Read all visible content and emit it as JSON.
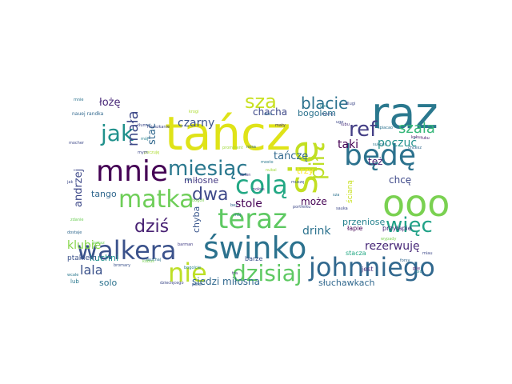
{
  "word_cloud": {
    "words": [
      {
        "text": "tańcz",
        "color": "#dfe318"
      },
      {
        "text": "raz",
        "color": "#2a788e"
      },
      {
        "text": "się",
        "color": "#c2df23"
      },
      {
        "text": "ooo",
        "color": "#7ad151"
      },
      {
        "text": "będę",
        "color": "#2c728e"
      },
      {
        "text": "johnniego",
        "color": "#31688e"
      },
      {
        "text": "świnko",
        "color": "#2c728e"
      },
      {
        "text": "walkera",
        "color": "#3b528b"
      },
      {
        "text": "mnie",
        "color": "#440154"
      },
      {
        "text": "teraz",
        "color": "#5ec962"
      },
      {
        "text": "dzisiaj",
        "color": "#5ec962"
      },
      {
        "text": "matka",
        "color": "#6ece58"
      },
      {
        "text": "nie",
        "color": "#bddf26"
      },
      {
        "text": "colą",
        "color": "#22a884"
      },
      {
        "text": "miesiąc",
        "color": "#2a788e"
      },
      {
        "text": "pił",
        "color": "#bddf26"
      },
      {
        "text": "jak",
        "color": "#21918c"
      },
      {
        "text": "więc",
        "color": "#1fa187"
      },
      {
        "text": "dziś",
        "color": "#482173"
      },
      {
        "text": "dwa",
        "color": "#3e4989"
      },
      {
        "text": "ref",
        "color": "#433e85"
      },
      {
        "text": "sza",
        "color": "#c8e020"
      },
      {
        "text": "blacie",
        "color": "#2c728e"
      },
      {
        "text": "szala",
        "color": "#35b779"
      },
      {
        "text": "mała",
        "color": "#3e4989"
      },
      {
        "text": "lala",
        "color": "#3b528b"
      },
      {
        "text": "czarny",
        "color": "#3b528b"
      },
      {
        "text": "stole",
        "color": "#440154"
      },
      {
        "text": "drink",
        "color": "#2c728e"
      },
      {
        "text": "rezerwuję",
        "color": "#482878"
      },
      {
        "text": "klubie",
        "color": "#86d549"
      },
      {
        "text": "taki",
        "color": "#440154"
      },
      {
        "text": "tańczę",
        "color": "#31688e"
      },
      {
        "text": "poczuć",
        "color": "#21918c"
      },
      {
        "text": "andrzej",
        "color": "#3e4989"
      },
      {
        "text": "łożę",
        "color": "#482878"
      },
      {
        "text": "stać",
        "color": "#31688e"
      },
      {
        "text": "też",
        "color": "#481f70"
      },
      {
        "text": "może",
        "color": "#440154"
      },
      {
        "text": "chcę",
        "color": "#3e4989"
      },
      {
        "text": "chacha",
        "color": "#3e4989"
      },
      {
        "text": "bogolem",
        "color": "#2c728e"
      },
      {
        "text": "miłosne",
        "color": "#443983"
      },
      {
        "text": "siedzi miłosna",
        "color": "#31688e"
      },
      {
        "text": "słuchawkach",
        "color": "#31688e"
      },
      {
        "text": "przeniosę",
        "color": "#26828e"
      },
      {
        "text": "tango",
        "color": "#31688e"
      },
      {
        "text": "kuchni",
        "color": "#21918c"
      },
      {
        "text": "trzy",
        "color": "#fde725"
      },
      {
        "text": "chyba",
        "color": "#39568c"
      },
      {
        "text": "solo",
        "color": "#2c728e"
      },
      {
        "text": "ptakiem",
        "color": "#3b528b"
      },
      {
        "text": "ścianą",
        "color": "#c8e020"
      },
      {
        "text": "łapie",
        "color": "#440154"
      },
      {
        "text": "przyłapie",
        "color": "#482878"
      },
      {
        "text": "stacza",
        "color": "#22a884"
      },
      {
        "text": "jest",
        "color": "#472d7b"
      },
      {
        "text": "barze",
        "color": "#3b528b"
      },
      {
        "text": "lub",
        "color": "#2a788e"
      },
      {
        "text": "nauej randka",
        "color": "#31688e"
      },
      {
        "text": "krogi",
        "color": "#addc30"
      },
      {
        "text": "prominent",
        "color": "#a0da39"
      },
      {
        "text": "portfelku",
        "color": "#3e4989"
      },
      {
        "text": "barman",
        "color": "#433e85"
      },
      {
        "text": "pokaz",
        "color": "#6ece58"
      },
      {
        "text": "sauchaj",
        "color": "#2c728e"
      },
      {
        "text": "dziecięcego",
        "color": "#3e4989"
      },
      {
        "text": "forsy",
        "color": "#31688e"
      },
      {
        "text": "mieszkanie",
        "color": "#3e4989"
      },
      {
        "text": "sukces",
        "color": "#2a788e"
      },
      {
        "text": "dzien",
        "color": "#443983"
      },
      {
        "text": "nosa",
        "color": "#31688e"
      },
      {
        "text": "poter",
        "color": "#39568c"
      },
      {
        "text": "maty",
        "color": "#46327e"
      },
      {
        "text": "mamy",
        "color": "#3b528b"
      },
      {
        "text": "dlugi",
        "color": "#3e4989"
      },
      {
        "text": "lubu",
        "color": "#472d7b"
      },
      {
        "text": "mój",
        "color": "#26828e"
      },
      {
        "text": "koku",
        "color": "#481a6c"
      },
      {
        "text": "wypady",
        "color": "#7ad151"
      },
      {
        "text": "tra",
        "color": "#46327e"
      },
      {
        "text": "miau",
        "color": "#3e4989"
      },
      {
        "text": "śpiacao",
        "color": "#2c728e"
      },
      {
        "text": "dostaje",
        "color": "#31688e"
      },
      {
        "text": "bromary",
        "color": "#3b528b"
      },
      {
        "text": "mocher",
        "color": "#3e4989"
      },
      {
        "text": "mnie",
        "color": "#2c728e"
      },
      {
        "text": "ugo",
        "color": "#3e4989"
      },
      {
        "text": "fuku",
        "color": "#481a6c"
      },
      {
        "text": "ubo",
        "color": "#26828e"
      },
      {
        "text": "nokus",
        "color": "#46327e"
      },
      {
        "text": "mosto",
        "color": "#2a788e"
      },
      {
        "text": "bez",
        "color": "#31688e"
      },
      {
        "text": "tłumu",
        "color": "#3e4989"
      },
      {
        "text": "poczuję",
        "color": "#addc30"
      },
      {
        "text": "nukai",
        "color": "#a0da39"
      },
      {
        "text": "nie",
        "color": "#2c728e"
      },
      {
        "text": "muszę",
        "color": "#3b528b"
      },
      {
        "text": "kubuś",
        "color": "#7ad151"
      },
      {
        "text": "sauka",
        "color": "#3e4989"
      },
      {
        "text": "chcesz",
        "color": "#31688e"
      },
      {
        "text": "bogoli",
        "color": "#7ad151"
      },
      {
        "text": "bogolcie",
        "color": "#26828e"
      },
      {
        "text": "mój",
        "color": "#2c728e"
      },
      {
        "text": "mym",
        "color": "#3e4989"
      },
      {
        "text": "zdanie",
        "color": "#6ece58"
      },
      {
        "text": "wcale",
        "color": "#2a788e"
      },
      {
        "text": "owa",
        "color": "#31688e"
      },
      {
        "text": "jak",
        "color": "#3e4989"
      },
      {
        "text": "sza",
        "color": "#2c728e"
      },
      {
        "text": "pije",
        "color": "#481a6c"
      },
      {
        "text": "pić",
        "color": "#26828e"
      }
    ]
  }
}
